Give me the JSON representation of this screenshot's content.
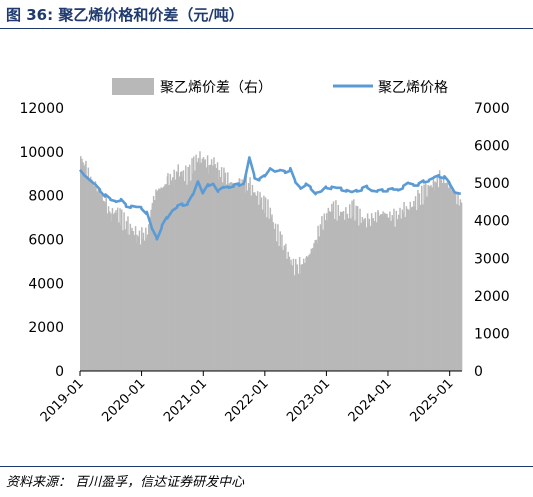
{
  "figure": {
    "title": "图 36:  聚乙烯价格和价差（元/吨）",
    "source": "资料来源：  百川盈孚，信达证券研发中心"
  },
  "chart_data": {
    "type": "bar+line",
    "title": "",
    "legend_position": "top",
    "x_ticks": [
      "2019-01",
      "2020-01",
      "2021-01",
      "2022-01",
      "2023-01",
      "2024-01",
      "2025-01"
    ],
    "x_range": [
      "2019-01-01",
      "2025-03-15"
    ],
    "left_axis": {
      "min": 0,
      "max": 12000,
      "ticks": [
        0,
        2000,
        4000,
        6000,
        8000,
        10000,
        12000
      ]
    },
    "right_axis": {
      "min": 0,
      "max": 7000,
      "ticks": [
        0,
        1000,
        2000,
        3000,
        4000,
        5000,
        6000,
        7000
      ]
    },
    "series": [
      {
        "name": "聚乙烯价差（右）",
        "type": "bar",
        "axis": "right",
        "color": "#b8b8b8",
        "points": [
          [
            "2019-01-01",
            5700
          ],
          [
            "2019-02-01",
            5400
          ],
          [
            "2019-03-01",
            5150
          ],
          [
            "2019-04-01",
            4900
          ],
          [
            "2019-05-01",
            4750
          ],
          [
            "2019-06-01",
            4400
          ],
          [
            "2019-07-01",
            4200
          ],
          [
            "2019-08-01",
            4250
          ],
          [
            "2019-09-01",
            4050
          ],
          [
            "2019-10-01",
            3900
          ],
          [
            "2019-11-01",
            3750
          ],
          [
            "2019-12-01",
            3650
          ],
          [
            "2020-01-01",
            3550
          ],
          [
            "2020-02-01",
            3700
          ],
          [
            "2020-03-01",
            4500
          ],
          [
            "2020-04-01",
            4850
          ],
          [
            "2020-05-01",
            4850
          ],
          [
            "2020-06-01",
            5100
          ],
          [
            "2020-07-01",
            5150
          ],
          [
            "2020-08-01",
            5300
          ],
          [
            "2020-09-01",
            5250
          ],
          [
            "2020-10-01",
            5200
          ],
          [
            "2020-11-01",
            5500
          ],
          [
            "2020-12-01",
            5700
          ],
          [
            "2021-01-01",
            5600
          ],
          [
            "2021-02-01",
            5500
          ],
          [
            "2021-03-01",
            5600
          ],
          [
            "2021-04-01",
            5300
          ],
          [
            "2021-05-01",
            5200
          ],
          [
            "2021-06-01",
            5050
          ],
          [
            "2021-07-01",
            4950
          ],
          [
            "2021-08-01",
            5050
          ],
          [
            "2021-09-01",
            5000
          ],
          [
            "2021-10-01",
            4900
          ],
          [
            "2021-11-01",
            4750
          ],
          [
            "2021-12-01",
            4550
          ],
          [
            "2022-01-01",
            4400
          ],
          [
            "2022-02-01",
            4200
          ],
          [
            "2022-03-01",
            3750
          ],
          [
            "2022-04-01",
            3500
          ],
          [
            "2022-05-01",
            3200
          ],
          [
            "2022-06-01",
            2950
          ],
          [
            "2022-07-01",
            2700
          ],
          [
            "2022-08-01",
            2850
          ],
          [
            "2022-09-01",
            3000
          ],
          [
            "2022-10-01",
            3200
          ],
          [
            "2022-11-01",
            3600
          ],
          [
            "2022-12-01",
            3900
          ],
          [
            "2023-01-01",
            4200
          ],
          [
            "2023-02-01",
            4350
          ],
          [
            "2023-03-01",
            4250
          ],
          [
            "2023-04-01",
            4200
          ],
          [
            "2023-05-01",
            4150
          ],
          [
            "2023-06-01",
            4350
          ],
          [
            "2023-07-01",
            4150
          ],
          [
            "2023-08-01",
            4050
          ],
          [
            "2023-09-01",
            3950
          ],
          [
            "2023-10-01",
            4050
          ],
          [
            "2023-11-01",
            4150
          ],
          [
            "2023-12-01",
            4200
          ],
          [
            "2024-01-01",
            4150
          ],
          [
            "2024-02-01",
            4050
          ],
          [
            "2024-03-01",
            4150
          ],
          [
            "2024-04-01",
            4250
          ],
          [
            "2024-05-01",
            4350
          ],
          [
            "2024-06-01",
            4450
          ],
          [
            "2024-07-01",
            4600
          ],
          [
            "2024-08-01",
            4750
          ],
          [
            "2024-09-01",
            4900
          ],
          [
            "2024-10-01",
            5050
          ],
          [
            "2024-11-01",
            5100
          ],
          [
            "2024-12-01",
            5050
          ],
          [
            "2025-01-01",
            4900
          ],
          [
            "2025-02-01",
            4650
          ],
          [
            "2025-03-01",
            4500
          ]
        ]
      },
      {
        "name": "聚乙烯价格",
        "type": "line",
        "axis": "left",
        "color": "#5b9bd5",
        "points": [
          [
            "2019-01-01",
            9200
          ],
          [
            "2019-02-01",
            8900
          ],
          [
            "2019-03-01",
            8700
          ],
          [
            "2019-04-01",
            8500
          ],
          [
            "2019-05-01",
            8250
          ],
          [
            "2019-06-01",
            8000
          ],
          [
            "2019-07-01",
            7800
          ],
          [
            "2019-08-01",
            7750
          ],
          [
            "2019-09-01",
            7800
          ],
          [
            "2019-10-01",
            7550
          ],
          [
            "2019-11-01",
            7500
          ],
          [
            "2019-12-01",
            7450
          ],
          [
            "2020-01-01",
            7450
          ],
          [
            "2020-02-01",
            7200
          ],
          [
            "2020-03-01",
            6500
          ],
          [
            "2020-04-01",
            6050
          ],
          [
            "2020-05-01",
            6600
          ],
          [
            "2020-06-01",
            7000
          ],
          [
            "2020-07-01",
            7350
          ],
          [
            "2020-08-01",
            7500
          ],
          [
            "2020-09-01",
            7600
          ],
          [
            "2020-10-01",
            7650
          ],
          [
            "2020-11-01",
            8050
          ],
          [
            "2020-12-01",
            8700
          ],
          [
            "2021-01-01",
            8100
          ],
          [
            "2021-02-01",
            8500
          ],
          [
            "2021-03-01",
            8600
          ],
          [
            "2021-04-01",
            8200
          ],
          [
            "2021-05-01",
            8350
          ],
          [
            "2021-06-01",
            8400
          ],
          [
            "2021-07-01",
            8450
          ],
          [
            "2021-08-01",
            8500
          ],
          [
            "2021-09-01",
            8600
          ],
          [
            "2021-10-01",
            9700
          ],
          [
            "2021-11-01",
            8850
          ],
          [
            "2021-12-01",
            8750
          ],
          [
            "2022-01-01",
            8900
          ],
          [
            "2022-02-01",
            9250
          ],
          [
            "2022-03-01",
            9100
          ],
          [
            "2022-04-01",
            9150
          ],
          [
            "2022-05-01",
            9100
          ],
          [
            "2022-06-01",
            9200
          ],
          [
            "2022-07-01",
            8600
          ],
          [
            "2022-08-01",
            8350
          ],
          [
            "2022-09-01",
            8500
          ],
          [
            "2022-10-01",
            8350
          ],
          [
            "2022-11-01",
            8100
          ],
          [
            "2022-12-01",
            8150
          ],
          [
            "2023-01-01",
            8400
          ],
          [
            "2023-02-01",
            8350
          ],
          [
            "2023-03-01",
            8300
          ],
          [
            "2023-04-01",
            8300
          ],
          [
            "2023-05-01",
            8250
          ],
          [
            "2023-06-01",
            8150
          ],
          [
            "2023-07-01",
            8250
          ],
          [
            "2023-08-01",
            8300
          ],
          [
            "2023-09-01",
            8400
          ],
          [
            "2023-10-01",
            8250
          ],
          [
            "2023-11-01",
            8200
          ],
          [
            "2023-12-01",
            8250
          ],
          [
            "2024-01-01",
            8250
          ],
          [
            "2024-02-01",
            8300
          ],
          [
            "2024-03-01",
            8300
          ],
          [
            "2024-04-01",
            8400
          ],
          [
            "2024-05-01",
            8550
          ],
          [
            "2024-06-01",
            8500
          ],
          [
            "2024-07-01",
            8500
          ],
          [
            "2024-08-01",
            8650
          ],
          [
            "2024-09-01",
            8700
          ],
          [
            "2024-10-01",
            8800
          ],
          [
            "2024-11-01",
            8900
          ],
          [
            "2024-12-01",
            8850
          ],
          [
            "2025-01-01",
            8550
          ],
          [
            "2025-02-01",
            8150
          ],
          [
            "2025-03-01",
            8100
          ]
        ]
      }
    ]
  }
}
